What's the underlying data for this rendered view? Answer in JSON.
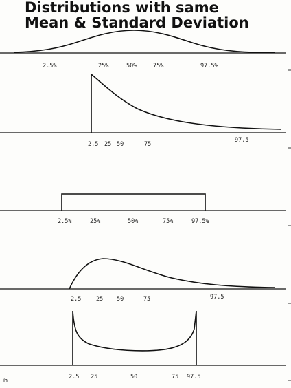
{
  "title": {
    "line1": "Distributions with same",
    "line2": "Mean & Standard Deviation"
  },
  "signature": "ih",
  "panels": [
    {
      "id": "normal",
      "shape": "bell",
      "labels": [
        "2.5%",
        "25%",
        "50%",
        "75%",
        "97.5%"
      ]
    },
    {
      "id": "exponential",
      "shape": "right-skewed-vertical-start",
      "labels": [
        "2.5",
        "25",
        "50",
        "75",
        "97.5"
      ]
    },
    {
      "id": "uniform",
      "shape": "rectangle",
      "labels": [
        "2.5%",
        "25%",
        "50%",
        "75%",
        "97.5%"
      ]
    },
    {
      "id": "skewed",
      "shape": "right-skewed",
      "labels": [
        "2.5",
        "25",
        "50",
        "75",
        "97.5"
      ]
    },
    {
      "id": "u-shaped",
      "shape": "u-shape",
      "labels": [
        "2.5",
        "25",
        "50",
        "75",
        "97.5"
      ]
    }
  ]
}
